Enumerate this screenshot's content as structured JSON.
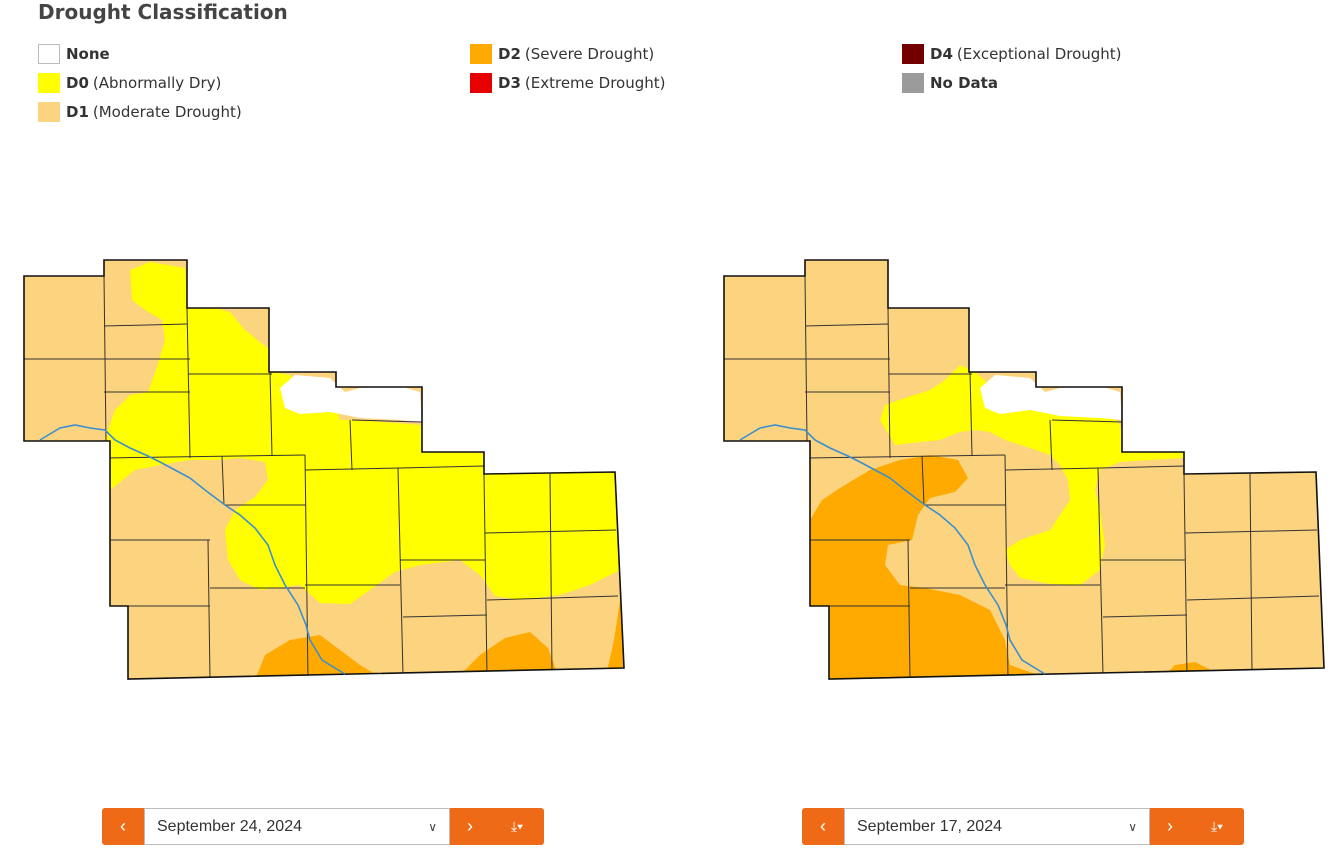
{
  "title": "Drought Classification",
  "legend": [
    {
      "code": "None",
      "label": "",
      "color": "#ffffff"
    },
    {
      "code": "D0",
      "label": "(Abnormally Dry)",
      "color": "#ffff00"
    },
    {
      "code": "D1",
      "label": "(Moderate Drought)",
      "color": "#fcd37f"
    },
    {
      "code": "D2",
      "label": "(Severe Drought)",
      "color": "#ffaa00"
    },
    {
      "code": "D3",
      "label": "(Extreme Drought)",
      "color": "#e60000"
    },
    {
      "code": "D4",
      "label": "(Exceptional Drought)",
      "color": "#730000"
    },
    {
      "code": "No Data",
      "label": "",
      "color": "#9b9b9b"
    }
  ],
  "maps": [
    {
      "date": "September 24, 2024"
    },
    {
      "date": "September 17, 2024"
    }
  ],
  "controls": {
    "prev_icon": "‹",
    "next_icon": "›",
    "download_icon": "⤓▾"
  }
}
